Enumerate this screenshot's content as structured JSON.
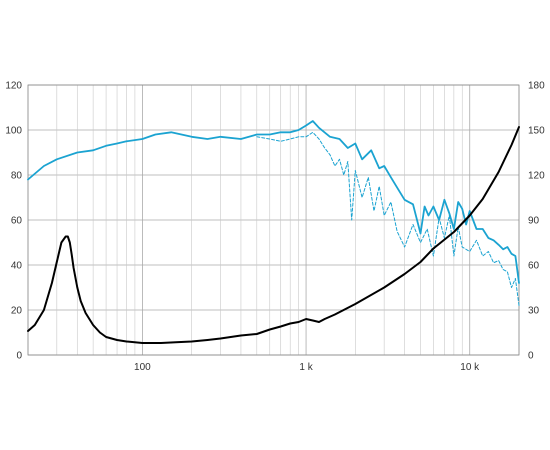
{
  "chart_data": {
    "type": "line",
    "title": "",
    "xlabel": "",
    "ylabel": "",
    "x_scale": "log",
    "xlim": [
      20,
      20000
    ],
    "ylim_left": [
      0,
      120
    ],
    "ylim_right": [
      0,
      180
    ],
    "grid": true,
    "x_tick_labels": [
      {
        "value": 100,
        "label": "100"
      },
      {
        "value": 1000,
        "label": "1 k"
      },
      {
        "value": 10000,
        "label": "10 k"
      }
    ],
    "left_ticks": [
      "0",
      "20",
      "40",
      "60",
      "80",
      "100",
      "120"
    ],
    "right_ticks": [
      "0",
      "30",
      "60",
      "90",
      "120",
      "150",
      "180"
    ],
    "colors": {
      "frequency_response": "#1ba3d1",
      "off_axis_response": "#1ba3d1",
      "impedance": "#000000",
      "grid": "#aaaaaa"
    },
    "series": [
      {
        "id": "frequency_response",
        "axis": "left",
        "style": "solid",
        "x": [
          20,
          25,
          30,
          40,
          50,
          60,
          70,
          80,
          100,
          120,
          150,
          200,
          250,
          300,
          400,
          500,
          600,
          700,
          800,
          900,
          1000,
          1100,
          1200,
          1400,
          1600,
          1800,
          2000,
          2200,
          2500,
          2800,
          3000,
          3300,
          3700,
          4000,
          4500,
          5000,
          5300,
          5600,
          6000,
          6500,
          7000,
          7500,
          8000,
          8500,
          9000,
          9500,
          10000,
          11000,
          12000,
          13000,
          14000,
          15000,
          16000,
          17000,
          18000,
          19000,
          20000
        ],
        "y": [
          78,
          84,
          87,
          90,
          91,
          93,
          94,
          95,
          96,
          98,
          99,
          97,
          96,
          97,
          96,
          98,
          98,
          99,
          99,
          100,
          102,
          104,
          101,
          97,
          96,
          92,
          94,
          87,
          91,
          83,
          84,
          79,
          73,
          69,
          67,
          54,
          66,
          62,
          66,
          60,
          69,
          63,
          56,
          68,
          65,
          58,
          64,
          56,
          56,
          52,
          51,
          49,
          47,
          48,
          45,
          44,
          32
        ]
      },
      {
        "id": "off_axis_response",
        "axis": "left",
        "style": "dashed",
        "x": [
          500,
          600,
          700,
          800,
          900,
          1000,
          1100,
          1200,
          1300,
          1400,
          1500,
          1600,
          1700,
          1800,
          1900,
          2000,
          2200,
          2400,
          2600,
          2800,
          3000,
          3300,
          3600,
          4000,
          4500,
          5000,
          5500,
          6000,
          6500,
          7000,
          7500,
          8000,
          8500,
          9000,
          10000,
          11000,
          12000,
          13000,
          14000,
          15000,
          16000,
          17000,
          18000,
          19000,
          20000
        ],
        "y": [
          97,
          96,
          95,
          96,
          97,
          97,
          99,
          96,
          92,
          89,
          84,
          87,
          80,
          86,
          60,
          82,
          70,
          79,
          64,
          75,
          62,
          68,
          55,
          48,
          58,
          50,
          56,
          44,
          61,
          52,
          62,
          44,
          57,
          48,
          46,
          51,
          44,
          46,
          41,
          42,
          38,
          37,
          30,
          34,
          22
        ]
      },
      {
        "id": "impedance",
        "axis": "right",
        "style": "solid",
        "x": [
          20,
          22,
          25,
          28,
          30,
          32,
          34,
          35,
          36,
          37,
          38,
          40,
          42,
          45,
          50,
          55,
          60,
          70,
          80,
          100,
          130,
          160,
          200,
          250,
          300,
          400,
          500,
          600,
          700,
          800,
          900,
          1000,
          1100,
          1200,
          1300,
          1500,
          2000,
          3000,
          4000,
          5000,
          6000,
          8000,
          10000,
          12000,
          15000,
          18000,
          20000
        ],
        "y": [
          16,
          20,
          30,
          48,
          62,
          75,
          79,
          79,
          75,
          67,
          58,
          45,
          36,
          28,
          20,
          15,
          12,
          10,
          9,
          8,
          8,
          8.5,
          9,
          10,
          11,
          13,
          14,
          17,
          19,
          21,
          22,
          24,
          23,
          22,
          24,
          27,
          34,
          45,
          54,
          62,
          71,
          82,
          93,
          104,
          122,
          140,
          152
        ]
      }
    ]
  }
}
